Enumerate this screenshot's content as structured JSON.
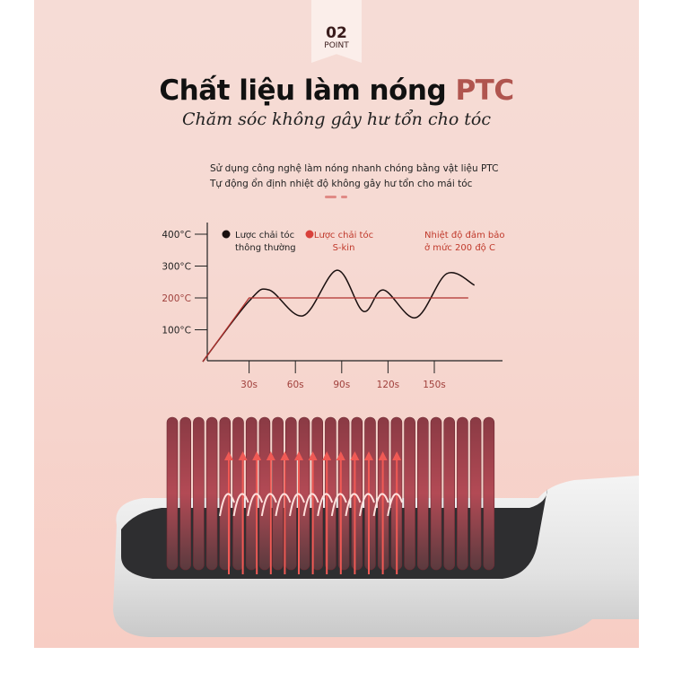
{
  "badge": {
    "number": "02",
    "label": "POINT"
  },
  "title": {
    "main": "Chất liệu làm nóng ",
    "highlight": "PTC",
    "highlight_color": "#b0554f"
  },
  "subtitle": "Chăm sóc không gây hư tổn cho tóc",
  "description": [
    "Sử dụng công nghệ làm nóng nhanh chóng bằng vật liệu PTC",
    "Tự động ổn định nhiệt độ không gây hư tổn cho mái tóc"
  ],
  "chart_data": {
    "type": "line",
    "xlabel": "",
    "ylabel": "",
    "x_ticks": [
      "30s",
      "60s",
      "90s",
      "120s",
      "150s"
    ],
    "x_tick_values": [
      30,
      60,
      90,
      120,
      150
    ],
    "y_ticks": [
      "100°C",
      "200°C",
      "300°C",
      "400°C"
    ],
    "y_tick_values": [
      100,
      200,
      300,
      400
    ],
    "xlim": [
      0,
      185
    ],
    "ylim": [
      0,
      430
    ],
    "grid": false,
    "legend_position": "top",
    "series": [
      {
        "name": "Lược chải tóc thông thường",
        "legend_lines": [
          "Lược chải tóc",
          "thông thường"
        ],
        "color": "#1a1010",
        "x": [
          0,
          30,
          43,
          65,
          87,
          104,
          117,
          138,
          158,
          176
        ],
        "y": [
          0,
          190,
          225,
          144,
          287,
          158,
          225,
          138,
          276,
          240
        ]
      },
      {
        "name": "Lược chải tóc S-kin",
        "legend_lines": [
          "Lược chải tóc",
          "S-kin"
        ],
        "color": "#b0302c",
        "x": [
          0,
          30,
          172
        ],
        "y": [
          0,
          200,
          200
        ]
      }
    ],
    "annotation": [
      "Nhiệt độ đảm bảo",
      "ở mức 200 độ C"
    ],
    "annotation_color": "#c0392b"
  }
}
